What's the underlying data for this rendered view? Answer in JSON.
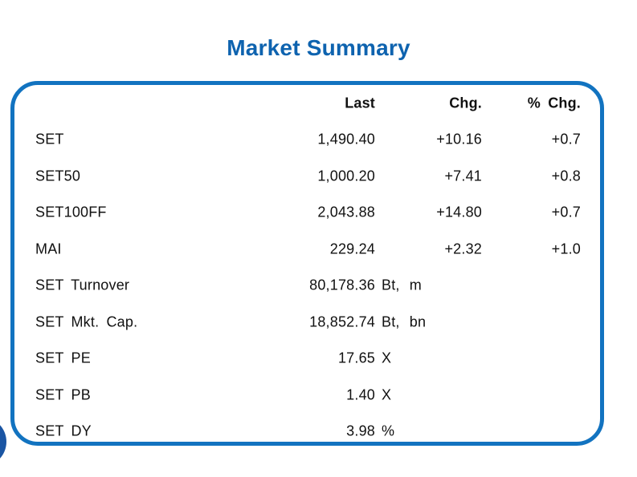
{
  "page": {
    "title": "Market Summary"
  },
  "colors": {
    "title_blue": "#0e63af",
    "panel_border_blue": "#1273c0",
    "text": "#111111",
    "edge_circle_blue": "#1a55a3"
  },
  "table": {
    "headers": {
      "last": "Last",
      "chg": "Chg.",
      "pct_chg": "% Chg."
    },
    "rows": [
      {
        "label": "SET",
        "last": "1,490.40",
        "unit": "",
        "chg": "+10.16",
        "pct_chg": "+0.7"
      },
      {
        "label": "SET50",
        "last": "1,000.20",
        "unit": "",
        "chg": "+7.41",
        "pct_chg": "+0.8"
      },
      {
        "label": "SET100FF",
        "last": "2,043.88",
        "unit": "",
        "chg": "+14.80",
        "pct_chg": "+0.7"
      },
      {
        "label": "MAI",
        "last": "229.24",
        "unit": "",
        "chg": "+2.32",
        "pct_chg": "+1.0"
      },
      {
        "label": "SET Turnover",
        "last": "80,178.36",
        "unit": "Bt, m",
        "chg": "",
        "pct_chg": ""
      },
      {
        "label": "SET Mkt. Cap.",
        "last": "18,852.74",
        "unit": "Bt, bn",
        "chg": "",
        "pct_chg": ""
      },
      {
        "label": "SET PE",
        "last": "17.65",
        "unit": "X",
        "chg": "",
        "pct_chg": ""
      },
      {
        "label": "SET PB",
        "last": "1.40",
        "unit": "X",
        "chg": "",
        "pct_chg": ""
      },
      {
        "label": "SET DY",
        "last": "3.98",
        "unit": "%",
        "chg": "",
        "pct_chg": ""
      }
    ]
  }
}
